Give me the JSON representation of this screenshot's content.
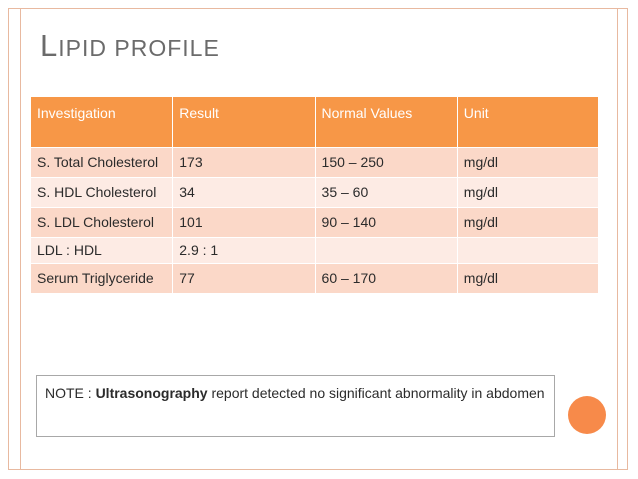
{
  "slide": {
    "title_cap": "L",
    "title_rest": "IPID PROFILE"
  },
  "table": {
    "headers": [
      "Investigation",
      "Result",
      "Normal Values",
      "Unit"
    ],
    "rows": [
      {
        "investigation": "S. Total Cholesterol",
        "result": "173",
        "normal": "150 – 250",
        "unit": "mg/dl"
      },
      {
        "investigation": "S. HDL Cholesterol",
        "result": "34",
        "normal": "35 – 60",
        "unit": "mg/dl"
      },
      {
        "investigation": "S. LDL Cholesterol",
        "result": "101",
        "normal": "90 – 140",
        "unit": "mg/dl"
      },
      {
        "investigation": "LDL : HDL",
        "result": "2.9 : 1",
        "normal": "",
        "unit": ""
      },
      {
        "investigation": "Serum Triglyceride",
        "result": "77",
        "normal": "60 – 170",
        "unit": "mg/dl"
      }
    ]
  },
  "note": {
    "prefix": "NOTE : ",
    "bold": "Ultrasonography",
    "suffix": " report detected no significant abnormality in abdomen"
  },
  "colors": {
    "header_bg": "#f79747",
    "row_odd": "#fbd8c8",
    "row_even": "#fdebe4",
    "accent_circle": "#f78a4a"
  }
}
